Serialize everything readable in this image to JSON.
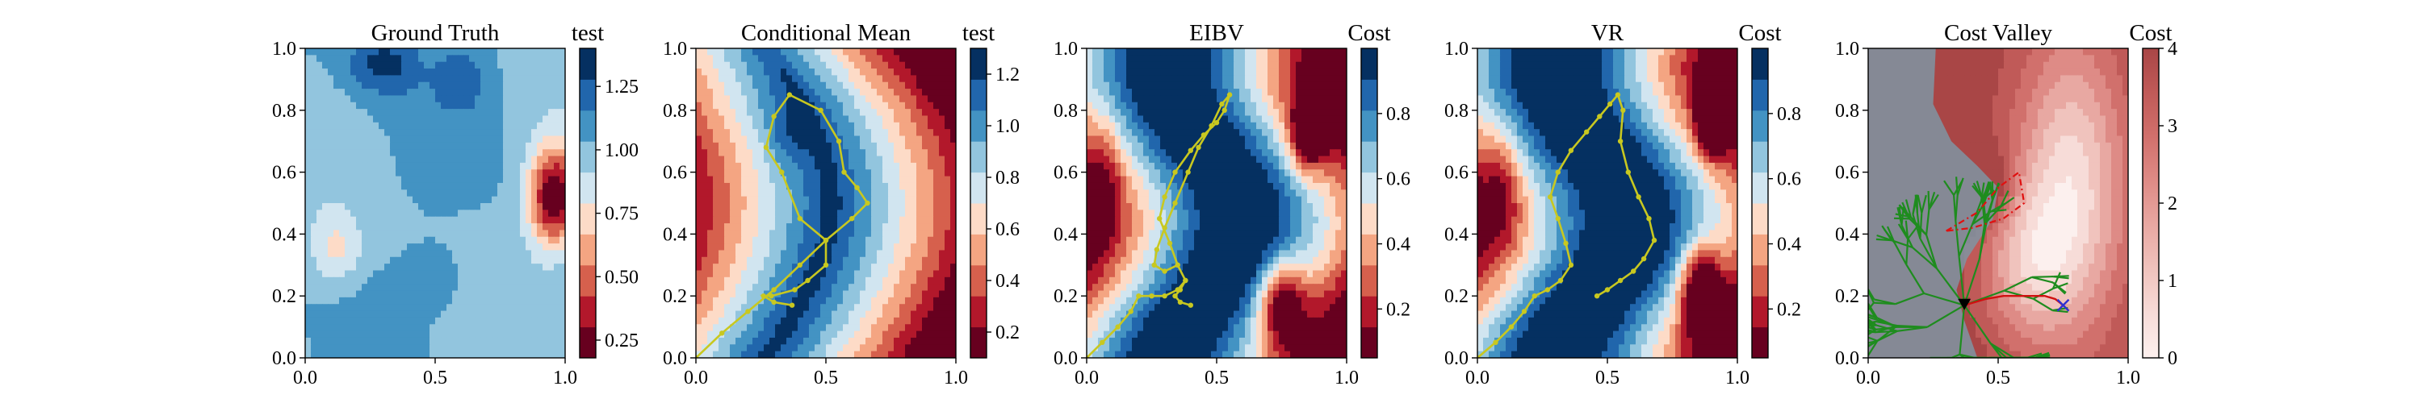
{
  "chart_data": [
    {
      "type": "heatmap",
      "title": "Ground Truth",
      "colorbar_label": "test",
      "colormap": "RdBu",
      "xlim": [
        0,
        1
      ],
      "ylim": [
        0,
        1
      ],
      "xticks": [
        "0.0",
        "0.5",
        "1.0"
      ],
      "yticks": [
        "0.0",
        "0.2",
        "0.4",
        "0.6",
        "0.8",
        "1.0"
      ],
      "clim": [
        0.18,
        1.4
      ],
      "cbar_ticks": [
        0.25,
        0.5,
        0.75,
        1.0,
        1.25
      ],
      "cbar_ticklabels": [
        "0.25",
        "0.50",
        "0.75",
        "1.00",
        "1.25"
      ]
    },
    {
      "type": "heatmap",
      "title": "Conditional Mean",
      "colorbar_label": "test",
      "colormap": "RdBu",
      "xlim": [
        0,
        1
      ],
      "ylim": [
        0,
        1
      ],
      "xticks": [
        "0.0",
        "0.5",
        "1.0"
      ],
      "yticks": [
        "0.0",
        "0.2",
        "0.4",
        "0.6",
        "0.8",
        "1.0"
      ],
      "clim": [
        0.1,
        1.3
      ],
      "cbar_ticks": [
        0.2,
        0.4,
        0.6,
        0.8,
        1.0,
        1.2
      ],
      "cbar_ticklabels": [
        "0.2",
        "0.4",
        "0.6",
        "0.8",
        "1.0",
        "1.2"
      ],
      "path": {
        "color": "#c8c820",
        "x": [
          0.0,
          0.1,
          0.2,
          0.3,
          0.4,
          0.5,
          0.6,
          0.66,
          0.62,
          0.57,
          0.55,
          0.48,
          0.36,
          0.3,
          0.27,
          0.33,
          0.4,
          0.5,
          0.5,
          0.43,
          0.38,
          0.29,
          0.26,
          0.3,
          0.37
        ],
        "y": [
          0.0,
          0.08,
          0.15,
          0.22,
          0.3,
          0.38,
          0.45,
          0.5,
          0.55,
          0.6,
          0.7,
          0.8,
          0.85,
          0.78,
          0.68,
          0.6,
          0.45,
          0.38,
          0.3,
          0.25,
          0.22,
          0.2,
          0.2,
          0.18,
          0.17
        ]
      }
    },
    {
      "type": "heatmap",
      "title": "EIBV",
      "colorbar_label": "Cost",
      "colormap": "RdBu",
      "xlim": [
        0,
        1
      ],
      "ylim": [
        0,
        1
      ],
      "xticks": [
        "0.0",
        "0.5",
        "1.0"
      ],
      "yticks": [
        "0.0",
        "0.2",
        "0.4",
        "0.6",
        "0.8",
        "1.0"
      ],
      "clim": [
        0.05,
        1.0
      ],
      "cbar_ticks": [
        0.2,
        0.4,
        0.6,
        0.8
      ],
      "cbar_ticklabels": [
        "0.2",
        "0.4",
        "0.6",
        "0.8"
      ],
      "path": {
        "color": "#c8c820",
        "x": [
          0.0,
          0.06,
          0.12,
          0.17,
          0.2,
          0.25,
          0.3,
          0.35,
          0.38,
          0.35,
          0.32,
          0.28,
          0.3,
          0.34,
          0.4,
          0.45,
          0.5,
          0.53,
          0.55,
          0.52,
          0.48,
          0.43,
          0.39,
          0.34,
          0.3,
          0.27,
          0.26,
          0.3,
          0.35,
          0.38,
          0.36,
          0.34,
          0.36,
          0.4
        ],
        "y": [
          0.0,
          0.05,
          0.1,
          0.15,
          0.2,
          0.2,
          0.2,
          0.22,
          0.25,
          0.3,
          0.37,
          0.45,
          0.52,
          0.6,
          0.67,
          0.72,
          0.76,
          0.8,
          0.85,
          0.82,
          0.75,
          0.68,
          0.6,
          0.5,
          0.42,
          0.35,
          0.3,
          0.28,
          0.3,
          0.25,
          0.22,
          0.2,
          0.18,
          0.17
        ]
      }
    },
    {
      "type": "heatmap",
      "title": "VR",
      "colorbar_label": "Cost",
      "colormap": "RdBu",
      "xlim": [
        0,
        1
      ],
      "ylim": [
        0,
        1
      ],
      "xticks": [
        "0.0",
        "0.5",
        "1.0"
      ],
      "yticks": [
        "0.0",
        "0.2",
        "0.4",
        "0.6",
        "0.8",
        "1.0"
      ],
      "clim": [
        0.05,
        1.0
      ],
      "cbar_ticks": [
        0.2,
        0.4,
        0.6,
        0.8
      ],
      "cbar_ticklabels": [
        "0.2",
        "0.4",
        "0.6",
        "0.8"
      ],
      "path": {
        "color": "#c8c820",
        "x": [
          0.0,
          0.07,
          0.13,
          0.18,
          0.22,
          0.27,
          0.32,
          0.36,
          0.34,
          0.31,
          0.28,
          0.31,
          0.36,
          0.42,
          0.47,
          0.51,
          0.54,
          0.56,
          0.55,
          0.58,
          0.62,
          0.66,
          0.68,
          0.64,
          0.6,
          0.55,
          0.5,
          0.46
        ],
        "y": [
          0.0,
          0.05,
          0.1,
          0.15,
          0.2,
          0.22,
          0.25,
          0.3,
          0.37,
          0.45,
          0.52,
          0.6,
          0.67,
          0.73,
          0.78,
          0.82,
          0.85,
          0.8,
          0.7,
          0.6,
          0.52,
          0.45,
          0.38,
          0.32,
          0.28,
          0.25,
          0.22,
          0.2
        ]
      }
    },
    {
      "type": "heatmap",
      "title": "Cost Valley",
      "colorbar_label": "Cost",
      "colormap": "Reds",
      "xlim": [
        0,
        1
      ],
      "ylim": [
        0,
        1
      ],
      "xticks": [
        "0.0",
        "0.5",
        "1.0"
      ],
      "yticks": [
        "0.0",
        "0.2",
        "0.4",
        "0.6",
        "0.8",
        "1.0"
      ],
      "clim": [
        0,
        4
      ],
      "cbar_ticks": [
        0,
        1,
        2,
        3,
        4
      ],
      "cbar_ticklabels": [
        "0",
        "1",
        "2",
        "3",
        "4"
      ],
      "overlay_colors": {
        "tree": "#1e8c1e",
        "route": "#d01010",
        "budget_polygon": "#e01010",
        "start_marker": "#000000",
        "goal_marker": "#3030d0"
      },
      "start_point": [
        0.37,
        0.17
      ],
      "goal_point": [
        0.75,
        0.17
      ],
      "budget_polygon": {
        "x": [
          0.3,
          0.42,
          0.5,
          0.58,
          0.6,
          0.52,
          0.4,
          0.3
        ],
        "y": [
          0.41,
          0.47,
          0.55,
          0.6,
          0.5,
          0.45,
          0.42,
          0.41
        ]
      },
      "route": {
        "x": [
          0.37,
          0.45,
          0.52,
          0.58,
          0.63,
          0.68,
          0.72,
          0.75
        ],
        "y": [
          0.17,
          0.19,
          0.2,
          0.2,
          0.2,
          0.2,
          0.19,
          0.17
        ]
      }
    }
  ]
}
